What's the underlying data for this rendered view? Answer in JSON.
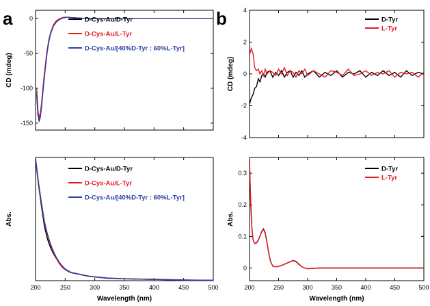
{
  "figure": {
    "panel_a_label": "a",
    "panel_b_label": "b"
  },
  "chart_data": [
    {
      "id": "a-top",
      "type": "line",
      "title": "",
      "xlabel": "",
      "ylabel": "CD (mdeg)",
      "xlim": [
        200,
        500
      ],
      "ylim": [
        -160,
        12
      ],
      "xticks": [],
      "yticks": [
        0,
        -50,
        -100,
        -150
      ],
      "legend": "top-right",
      "series": [
        {
          "name": "D-Cys-Au/D-Tyr",
          "color": "#000000",
          "x": [
            202,
            204,
            206,
            208,
            210,
            212,
            214,
            216,
            218,
            220,
            222,
            225,
            230,
            235,
            240,
            245,
            250,
            255,
            260,
            270,
            280,
            300,
            350,
            400,
            450,
            500
          ],
          "y": [
            -110,
            -138,
            -146,
            -140,
            -126,
            -108,
            -90,
            -73,
            -58,
            -45,
            -34,
            -22,
            -10,
            -4,
            -1,
            1,
            2,
            2,
            1.5,
            1,
            0.5,
            0,
            0,
            0,
            0,
            0
          ]
        },
        {
          "name": "D-Cys-Au/L-Tyr",
          "color": "#e8191d",
          "x": [
            202,
            204,
            206,
            208,
            210,
            212,
            214,
            216,
            218,
            220,
            222,
            225,
            230,
            235,
            240,
            245,
            250,
            255,
            260,
            270,
            280,
            300,
            350,
            400,
            450,
            500
          ],
          "y": [
            -100,
            -132,
            -142,
            -136,
            -122,
            -104,
            -86,
            -70,
            -55,
            -43,
            -32,
            -21,
            -9,
            -3,
            -0.5,
            1.5,
            2,
            2,
            1.5,
            1,
            0.5,
            0,
            0,
            0,
            0,
            0
          ]
        },
        {
          "name": "D-Cys-Au/[40%D-Tyr : 60%L-Tyr]",
          "color": "#2b3fa6",
          "x": [
            202,
            204,
            206,
            208,
            210,
            212,
            214,
            216,
            218,
            220,
            222,
            225,
            230,
            235,
            240,
            245,
            250,
            255,
            260,
            270,
            280,
            300,
            350,
            400,
            450,
            500
          ],
          "y": [
            -105,
            -137,
            -148,
            -142,
            -128,
            -110,
            -92,
            -75,
            -60,
            -46,
            -35,
            -23,
            -11,
            -5,
            -1.5,
            0.5,
            1.5,
            2,
            1.5,
            1,
            0.5,
            0,
            0,
            0,
            0,
            0
          ]
        }
      ]
    },
    {
      "id": "a-bottom",
      "type": "line",
      "title": "",
      "xlabel": "Wavelength (nm)",
      "ylabel": "Abs.",
      "xlim": [
        200,
        500
      ],
      "ylim": [
        0,
        1.0
      ],
      "xticks": [
        200,
        250,
        300,
        350,
        400,
        450,
        500
      ],
      "yticks": [],
      "legend": "top-right",
      "series": [
        {
          "name": "D-Cys-Au/D-Tyr",
          "color": "#000000",
          "x": [
            200,
            202,
            205,
            210,
            215,
            220,
            225,
            230,
            235,
            240,
            245,
            250,
            255,
            260,
            265,
            270,
            275,
            280,
            290,
            300,
            320,
            350,
            400,
            450,
            500
          ],
          "y": [
            0.98,
            0.9,
            0.78,
            0.6,
            0.44,
            0.34,
            0.27,
            0.22,
            0.18,
            0.14,
            0.11,
            0.09,
            0.075,
            0.065,
            0.06,
            0.055,
            0.05,
            0.045,
            0.035,
            0.03,
            0.02,
            0.015,
            0.01,
            0.005,
            0.003
          ]
        },
        {
          "name": "D-Cys-Au/L-Tyr",
          "color": "#e8191d",
          "x": [
            200,
            202,
            205,
            210,
            215,
            220,
            225,
            230,
            235,
            240,
            245,
            250,
            255,
            260,
            265,
            270,
            275,
            280,
            290,
            300,
            320,
            350,
            400,
            450,
            500
          ],
          "y": [
            0.99,
            0.91,
            0.79,
            0.62,
            0.47,
            0.37,
            0.29,
            0.23,
            0.18,
            0.14,
            0.11,
            0.09,
            0.075,
            0.065,
            0.06,
            0.055,
            0.05,
            0.045,
            0.035,
            0.03,
            0.02,
            0.015,
            0.01,
            0.005,
            0.003
          ]
        },
        {
          "name": "D-Cys-Au/[40%D-Tyr : 60%L-Tyr]",
          "color": "#2b3fa6",
          "x": [
            200,
            202,
            205,
            210,
            215,
            220,
            225,
            230,
            235,
            240,
            245,
            250,
            255,
            260,
            265,
            270,
            275,
            280,
            290,
            300,
            320,
            350,
            400,
            450,
            500
          ],
          "y": [
            1.0,
            0.92,
            0.8,
            0.63,
            0.48,
            0.38,
            0.3,
            0.24,
            0.19,
            0.15,
            0.12,
            0.095,
            0.08,
            0.068,
            0.062,
            0.057,
            0.052,
            0.047,
            0.037,
            0.032,
            0.022,
            0.016,
            0.011,
            0.006,
            0.004
          ]
        }
      ]
    },
    {
      "id": "b-top",
      "type": "line",
      "title": "",
      "xlabel": "",
      "ylabel": "CD (mdeg)",
      "xlim": [
        200,
        500
      ],
      "ylim": [
        -4,
        4
      ],
      "xticks": [],
      "yticks": [
        4,
        2,
        0,
        -2,
        -4
      ],
      "legend": "top-right",
      "series": [
        {
          "name": "D-Tyr",
          "color": "#000000",
          "x": [
            200,
            203,
            206,
            209,
            212,
            215,
            218,
            221,
            224,
            227,
            230,
            235,
            240,
            245,
            250,
            255,
            260,
            265,
            270,
            275,
            280,
            285,
            290,
            295,
            300,
            310,
            320,
            330,
            340,
            350,
            360,
            370,
            380,
            390,
            400,
            410,
            420,
            430,
            440,
            450,
            460,
            470,
            480,
            490,
            500
          ],
          "y": [
            -1.9,
            -1.5,
            -1.3,
            -0.9,
            -0.8,
            -0.3,
            -0.5,
            -0.1,
            0.0,
            -0.2,
            0.1,
            0.2,
            -0.2,
            0.1,
            -0.1,
            0.2,
            -0.2,
            0.1,
            0.2,
            -0.2,
            0.1,
            -0.1,
            0.2,
            -0.2,
            0.0,
            0.2,
            -0.2,
            0.1,
            -0.1,
            0.2,
            -0.2,
            0.1,
            0.0,
            0.2,
            -0.2,
            0.1,
            -0.1,
            0.2,
            -0.1,
            0.1,
            -0.2,
            0.2,
            -0.1,
            0.1,
            0.0
          ]
        },
        {
          "name": "L-Tyr",
          "color": "#e8191d",
          "x": [
            200,
            203,
            206,
            209,
            212,
            215,
            218,
            221,
            224,
            227,
            230,
            235,
            240,
            245,
            250,
            255,
            260,
            265,
            270,
            275,
            280,
            285,
            290,
            295,
            300,
            310,
            320,
            330,
            340,
            350,
            360,
            370,
            380,
            390,
            400,
            410,
            420,
            430,
            440,
            450,
            460,
            470,
            480,
            490,
            500
          ],
          "y": [
            1.2,
            1.6,
            1.3,
            0.4,
            0.2,
            0.3,
            0.0,
            0.2,
            -0.1,
            0.3,
            0.0,
            0.2,
            0.1,
            -0.1,
            0.3,
            0.0,
            0.4,
            -0.1,
            0.2,
            0.1,
            -0.2,
            0.2,
            0.0,
            0.3,
            -0.1,
            0.2,
            0.0,
            -0.2,
            0.2,
            0.1,
            -0.1,
            0.3,
            -0.1,
            0.0,
            0.2,
            -0.1,
            0.1,
            0.0,
            0.2,
            -0.2,
            0.1,
            0.0,
            0.1,
            -0.2,
            0.1
          ]
        }
      ]
    },
    {
      "id": "b-bottom",
      "type": "line",
      "title": "",
      "xlabel": "Wavelength (nm)",
      "ylabel": "Abs.",
      "xlim": [
        200,
        500
      ],
      "ylim": [
        -0.04,
        0.35
      ],
      "xticks": [
        200,
        250,
        300,
        350,
        400,
        450,
        500
      ],
      "yticks": [
        0.0,
        0.1,
        0.2,
        0.3
      ],
      "legend": "top-right",
      "series": [
        {
          "name": "D-Tyr",
          "color": "#000000",
          "x": [
            200,
            202,
            204,
            206,
            208,
            210,
            212,
            215,
            218,
            221,
            224,
            227,
            230,
            233,
            236,
            240,
            245,
            250,
            255,
            260,
            265,
            270,
            275,
            280,
            285,
            290,
            295,
            300,
            320,
            350,
            400,
            450,
            500
          ],
          "y": [
            0.34,
            0.21,
            0.13,
            0.09,
            0.08,
            0.078,
            0.08,
            0.088,
            0.102,
            0.116,
            0.124,
            0.112,
            0.082,
            0.048,
            0.022,
            0.006,
            0.004,
            0.005,
            0.008,
            0.012,
            0.016,
            0.02,
            0.024,
            0.021,
            0.012,
            0.004,
            0.0,
            -0.002,
            0.0,
            0.0,
            0.0,
            0.0,
            0.0
          ]
        },
        {
          "name": "L-Tyr",
          "color": "#e8191d",
          "x": [
            200,
            202,
            204,
            206,
            208,
            210,
            212,
            215,
            218,
            221,
            224,
            227,
            230,
            233,
            236,
            240,
            245,
            250,
            255,
            260,
            265,
            270,
            275,
            280,
            285,
            290,
            295,
            300,
            320,
            350,
            400,
            450,
            500
          ],
          "y": [
            0.34,
            0.2,
            0.125,
            0.09,
            0.08,
            0.077,
            0.079,
            0.087,
            0.101,
            0.115,
            0.122,
            0.11,
            0.08,
            0.046,
            0.021,
            0.006,
            0.004,
            0.005,
            0.008,
            0.012,
            0.016,
            0.02,
            0.023,
            0.02,
            0.011,
            0.004,
            0.0,
            -0.002,
            0.0,
            0.0,
            0.0,
            0.0,
            0.0
          ]
        }
      ]
    }
  ]
}
